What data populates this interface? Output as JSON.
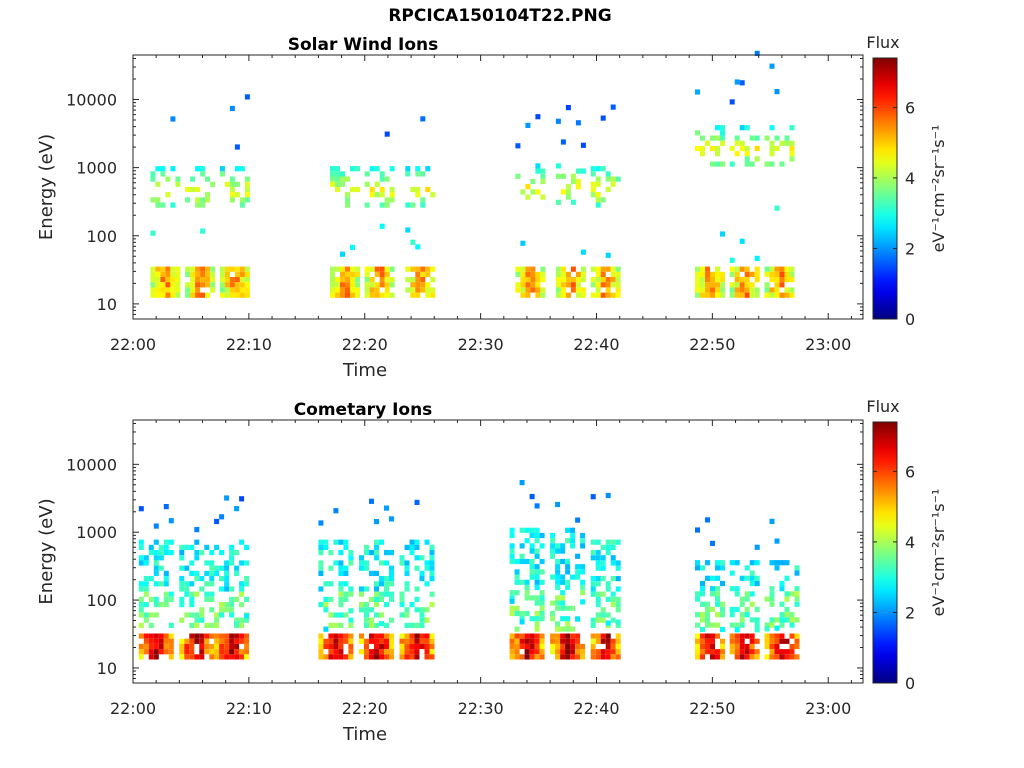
{
  "figure": {
    "title": "RPCICA150104T22.PNG"
  },
  "chart_data": [
    {
      "type": "heatmap",
      "title": "Solar Wind Ions",
      "xlabel": "Time",
      "ylabel": "Energy (eV)",
      "x_range": [
        "22:00",
        "23:03"
      ],
      "x_ticks": [
        "22:00",
        "22:10",
        "22:20",
        "22:30",
        "22:40",
        "22:50",
        "23:00"
      ],
      "y_scale": "log",
      "y_range": [
        6,
        45000
      ],
      "y_ticks": [
        10,
        100,
        1000,
        10000
      ],
      "y_tick_labels": [
        "10",
        "100",
        "1000",
        "10000"
      ],
      "colorbar": {
        "title": "Flux",
        "label": "eV⁻¹cm⁻²sr⁻¹s⁻¹",
        "range": [
          0,
          7.4
        ],
        "ticks": [
          0,
          2,
          4,
          6
        ],
        "colormap": "jet"
      },
      "grid": false,
      "bursts": [
        {
          "start": "22:01:30",
          "end": "22:04:00",
          "high_energy_eV": 500,
          "low_energy_eV": 22
        },
        {
          "start": "22:04:30",
          "end": "22:07:00",
          "high_energy_eV": 500,
          "low_energy_eV": 22
        },
        {
          "start": "22:07:30",
          "end": "22:10:00",
          "high_energy_eV": 500,
          "low_energy_eV": 22
        },
        {
          "start": "22:17:00",
          "end": "22:19:30",
          "high_energy_eV": 500,
          "low_energy_eV": 22
        },
        {
          "start": "22:20:00",
          "end": "22:22:30",
          "high_energy_eV": 500,
          "low_energy_eV": 22
        },
        {
          "start": "22:23:30",
          "end": "22:26:00",
          "high_energy_eV": 500,
          "low_energy_eV": 22
        },
        {
          "start": "22:33:00",
          "end": "22:35:30",
          "high_energy_eV": 550,
          "low_energy_eV": 22
        },
        {
          "start": "22:36:30",
          "end": "22:39:00",
          "high_energy_eV": 550,
          "low_energy_eV": 22
        },
        {
          "start": "22:39:30",
          "end": "22:42:00",
          "high_energy_eV": 500,
          "low_energy_eV": 22
        },
        {
          "start": "22:48:30",
          "end": "22:51:00",
          "high_energy_eV": 2000,
          "low_energy_eV": 22
        },
        {
          "start": "22:51:30",
          "end": "22:54:00",
          "high_energy_eV": 2000,
          "low_energy_eV": 22
        },
        {
          "start": "22:54:30",
          "end": "22:57:00",
          "high_energy_eV": 2000,
          "low_energy_eV": 22
        }
      ]
    },
    {
      "type": "heatmap",
      "title": "Cometary Ions",
      "xlabel": "Time",
      "ylabel": "Energy (eV)",
      "x_range": [
        "22:00",
        "23:03"
      ],
      "x_ticks": [
        "22:00",
        "22:10",
        "22:20",
        "22:30",
        "22:40",
        "22:50",
        "23:00"
      ],
      "y_scale": "log",
      "y_range": [
        6,
        45000
      ],
      "y_ticks": [
        10,
        100,
        1000,
        10000
      ],
      "y_tick_labels": [
        "10",
        "100",
        "1000",
        "10000"
      ],
      "colorbar": {
        "title": "Flux",
        "label": "eV⁻¹cm⁻²sr⁻¹s⁻¹",
        "range": [
          0,
          7.4
        ],
        "ticks": [
          0,
          2,
          4,
          6
        ],
        "colormap": "jet"
      },
      "grid": false,
      "bursts": [
        {
          "start": "22:00:30",
          "end": "22:03:30",
          "high_energy_eV": 200,
          "low_energy_eV": 20
        },
        {
          "start": "22:04:00",
          "end": "22:07:00",
          "high_energy_eV": 200,
          "low_energy_eV": 20
        },
        {
          "start": "22:07:00",
          "end": "22:10:00",
          "high_energy_eV": 200,
          "low_energy_eV": 20
        },
        {
          "start": "22:16:00",
          "end": "22:19:00",
          "high_energy_eV": 200,
          "low_energy_eV": 20
        },
        {
          "start": "22:19:30",
          "end": "22:22:30",
          "high_energy_eV": 200,
          "low_energy_eV": 20
        },
        {
          "start": "22:23:00",
          "end": "22:26:00",
          "high_energy_eV": 200,
          "low_energy_eV": 20
        },
        {
          "start": "22:32:30",
          "end": "22:35:30",
          "high_energy_eV": 300,
          "low_energy_eV": 20
        },
        {
          "start": "22:36:00",
          "end": "22:39:00",
          "high_energy_eV": 300,
          "low_energy_eV": 20
        },
        {
          "start": "22:39:30",
          "end": "22:42:00",
          "high_energy_eV": 200,
          "low_energy_eV": 20
        },
        {
          "start": "22:48:30",
          "end": "22:51:00",
          "high_energy_eV": 100,
          "low_energy_eV": 20
        },
        {
          "start": "22:51:30",
          "end": "22:54:00",
          "high_energy_eV": 100,
          "low_energy_eV": 20
        },
        {
          "start": "22:54:30",
          "end": "22:57:30",
          "high_energy_eV": 100,
          "low_energy_eV": 20
        }
      ]
    }
  ]
}
